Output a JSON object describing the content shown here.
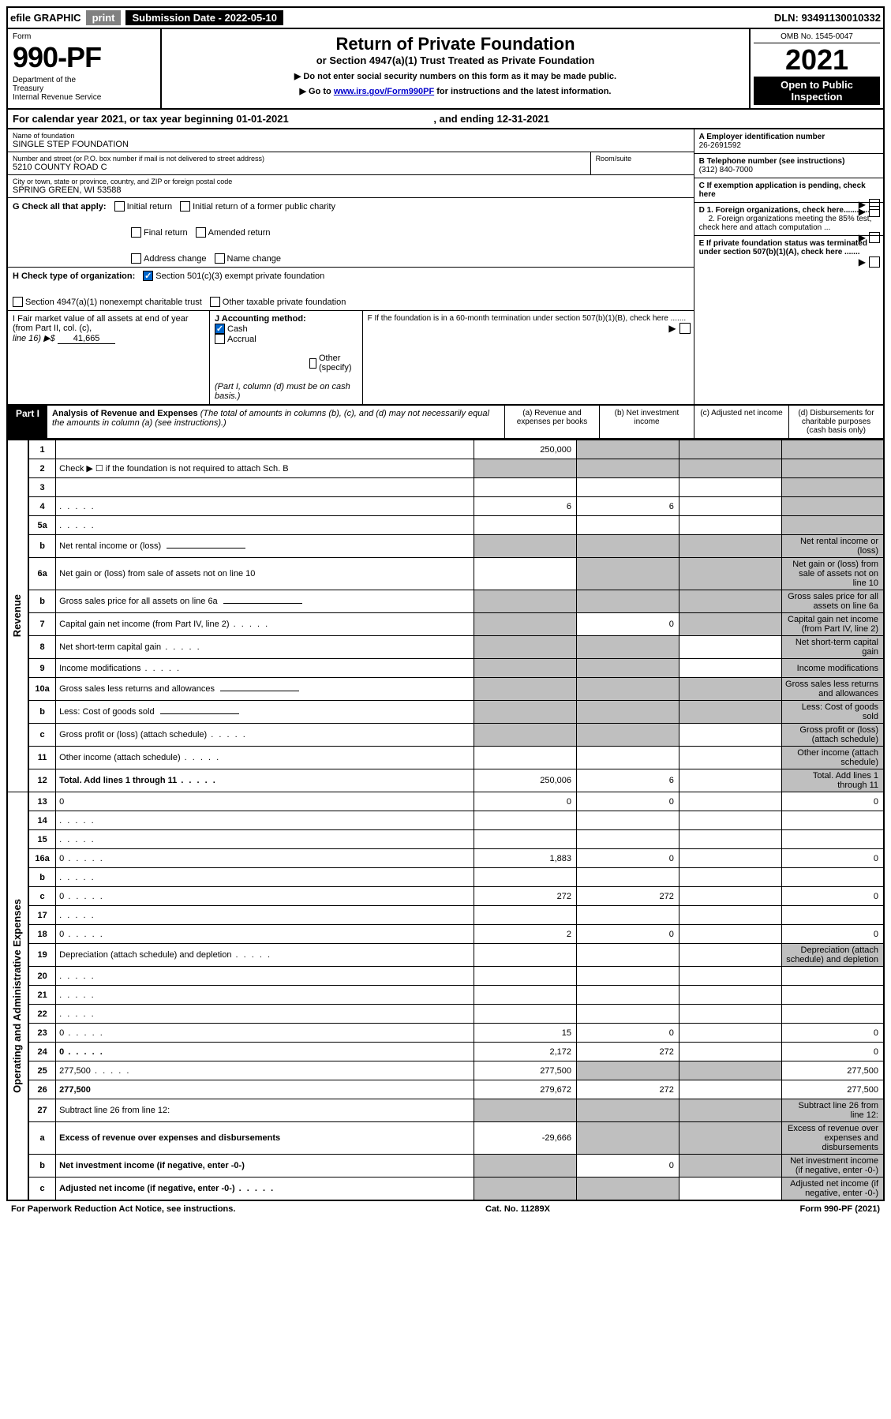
{
  "top": {
    "efile": "efile GRAPHIC",
    "print": "print",
    "sub_date_lbl": "Submission Date - 2022-05-10",
    "dln": "DLN: 93491130010332"
  },
  "header": {
    "form_lbl": "Form",
    "form_num": "990-PF",
    "dept": "Department of the Treasury\nInternal Revenue Service",
    "title": "Return of Private Foundation",
    "subtitle1": "or Section 4947(a)(1) Trust Treated as Private Foundation",
    "subtitle2": "▶ Do not enter social security numbers on this form as it may be made public.",
    "subtitle3": "▶ Go to www.irs.gov/Form990PF for instructions and the latest information.",
    "link": "www.irs.gov/Form990PF",
    "omb": "OMB No. 1545-0047",
    "year": "2021",
    "open": "Open to Public Inspection"
  },
  "cal_year": "For calendar year 2021, or tax year beginning 01-01-2021",
  "cal_year_end": ", and ending 12-31-2021",
  "foundation": {
    "name_lbl": "Name of foundation",
    "name": "SINGLE STEP FOUNDATION",
    "addr_lbl": "Number and street (or P.O. box number if mail is not delivered to street address)",
    "addr": "5210 COUNTY ROAD C",
    "room_lbl": "Room/suite",
    "city_lbl": "City or town, state or province, country, and ZIP or foreign postal code",
    "city": "SPRING GREEN, WI  53588",
    "a_lbl": "A Employer identification number",
    "ein": "26-2691592",
    "b_lbl": "B Telephone number (see instructions)",
    "phone": "(312) 840-7000",
    "c_lbl": "C If exemption application is pending, check here",
    "d1_lbl": "D 1. Foreign organizations, check here............",
    "d2_lbl": "2. Foreign organizations meeting the 85% test, check here and attach computation ...",
    "e_lbl": "E  If private foundation status was terminated under section 507(b)(1)(A), check here .......",
    "f_lbl": "F  If the foundation is in a 60-month termination under section 507(b)(1)(B), check here .......",
    "g_lbl": "G Check all that apply:",
    "g_opts": [
      "Initial return",
      "Initial return of a former public charity",
      "Final return",
      "Amended return",
      "Address change",
      "Name change"
    ],
    "h_lbl": "H Check type of organization:",
    "h_opts": [
      "Section 501(c)(3) exempt private foundation",
      "Section 4947(a)(1) nonexempt charitable trust",
      "Other taxable private foundation"
    ],
    "i_lbl": "I Fair market value of all assets at end of year (from Part II, col. (c),",
    "i_line": "line 16) ▶$",
    "i_val": "41,665",
    "j_lbl": "J Accounting method:",
    "j_opts": [
      "Cash",
      "Accrual",
      "Other (specify)"
    ],
    "j_note": "(Part I, column (d) must be on cash basis.)"
  },
  "part1": {
    "label": "Part I",
    "title": "Analysis of Revenue and Expenses",
    "title_note": "(The total of amounts in columns (b), (c), and (d) may not necessarily equal the amounts in column (a) (see instructions).)",
    "col_a": "(a)   Revenue and expenses per books",
    "col_b": "(b)   Net investment income",
    "col_c": "(c)   Adjusted net income",
    "col_d": "(d)  Disbursements for charitable purposes (cash basis only)"
  },
  "sections": {
    "revenue": "Revenue",
    "expenses": "Operating and Administrative Expenses"
  },
  "rows": [
    {
      "n": "1",
      "d": "",
      "a": "250,000",
      "b": "",
      "c": "",
      "gb": true,
      "gc": true,
      "gd": true
    },
    {
      "n": "2",
      "d": "Check ▶ ☐ if the foundation is not required to attach Sch. B",
      "nocols": true
    },
    {
      "n": "3",
      "d": "",
      "a": "",
      "b": "",
      "c": "",
      "gd": true
    },
    {
      "n": "4",
      "d": "",
      "a": "6",
      "b": "6",
      "c": "",
      "gd": true,
      "dots": true
    },
    {
      "n": "5a",
      "d": "",
      "a": "",
      "b": "",
      "c": "",
      "gd": true,
      "dots": true
    },
    {
      "n": "b",
      "d": "Net rental income or (loss)",
      "inset": true,
      "ga": true,
      "gb": true,
      "gc": true,
      "gd": true
    },
    {
      "n": "6a",
      "d": "Net gain or (loss) from sale of assets not on line 10",
      "a": "",
      "gb": true,
      "gc": true,
      "gd": true
    },
    {
      "n": "b",
      "d": "Gross sales price for all assets on line 6a",
      "inset": true,
      "ga": true,
      "gb": true,
      "gc": true,
      "gd": true
    },
    {
      "n": "7",
      "d": "Capital gain net income (from Part IV, line 2)",
      "b": "0",
      "ga": true,
      "gc": true,
      "gd": true,
      "dots": true
    },
    {
      "n": "8",
      "d": "Net short-term capital gain",
      "ga": true,
      "gb": true,
      "c": "",
      "gd": true,
      "dots": true
    },
    {
      "n": "9",
      "d": "Income modifications",
      "ga": true,
      "gb": true,
      "c": "",
      "gd": true,
      "dots": true
    },
    {
      "n": "10a",
      "d": "Gross sales less returns and allowances",
      "inset": true,
      "ga": true,
      "gb": true,
      "gc": true,
      "gd": true
    },
    {
      "n": "b",
      "d": "Less: Cost of goods sold",
      "inset": true,
      "ga": true,
      "gb": true,
      "gc": true,
      "gd": true,
      "dots": true
    },
    {
      "n": "c",
      "d": "Gross profit or (loss) (attach schedule)",
      "ga": true,
      "gb": true,
      "c": "",
      "gd": true,
      "dots": true
    },
    {
      "n": "11",
      "d": "Other income (attach schedule)",
      "a": "",
      "b": "",
      "c": "",
      "gd": true,
      "dots": true
    },
    {
      "n": "12",
      "d": "Total. Add lines 1 through 11",
      "a": "250,006",
      "b": "6",
      "c": "",
      "gd": true,
      "bold": true,
      "dots": true
    },
    {
      "n": "13",
      "d": "0",
      "a": "0",
      "b": "0",
      "c": ""
    },
    {
      "n": "14",
      "d": "",
      "a": "",
      "b": "",
      "c": "",
      "dots": true
    },
    {
      "n": "15",
      "d": "",
      "a": "",
      "b": "",
      "c": "",
      "dots": true
    },
    {
      "n": "16a",
      "d": "0",
      "a": "1,883",
      "b": "0",
      "c": "",
      "dots": true
    },
    {
      "n": "b",
      "d": "",
      "a": "",
      "b": "",
      "c": "",
      "dots": true
    },
    {
      "n": "c",
      "d": "0",
      "a": "272",
      "b": "272",
      "c": "",
      "dots": true
    },
    {
      "n": "17",
      "d": "",
      "a": "",
      "b": "",
      "c": "",
      "dots": true
    },
    {
      "n": "18",
      "d": "0",
      "a": "2",
      "b": "0",
      "c": "",
      "dots": true
    },
    {
      "n": "19",
      "d": "Depreciation (attach schedule) and depletion",
      "a": "",
      "b": "",
      "c": "",
      "gd": true,
      "dots": true
    },
    {
      "n": "20",
      "d": "",
      "a": "",
      "b": "",
      "c": "",
      "dots": true
    },
    {
      "n": "21",
      "d": "",
      "a": "",
      "b": "",
      "c": "",
      "dots": true
    },
    {
      "n": "22",
      "d": "",
      "a": "",
      "b": "",
      "c": "",
      "dots": true
    },
    {
      "n": "23",
      "d": "0",
      "a": "15",
      "b": "0",
      "c": "",
      "dots": true
    },
    {
      "n": "24",
      "d": "0",
      "a": "2,172",
      "b": "272",
      "c": "",
      "bold": true,
      "dots": true,
      "tall": true
    },
    {
      "n": "25",
      "d": "277,500",
      "a": "277,500",
      "gb": true,
      "gc": true,
      "dots": true
    },
    {
      "n": "26",
      "d": "277,500",
      "a": "279,672",
      "b": "272",
      "c": "",
      "bold": true,
      "tall": true
    },
    {
      "n": "27",
      "d": "Subtract line 26 from line 12:",
      "ga": true,
      "gb": true,
      "gc": true,
      "gd": true
    },
    {
      "n": "a",
      "d": "Excess of revenue over expenses and disbursements",
      "a": "-29,666",
      "gb": true,
      "gc": true,
      "gd": true,
      "bold": true
    },
    {
      "n": "b",
      "d": "Net investment income (if negative, enter -0-)",
      "ga": true,
      "b": "0",
      "gc": true,
      "gd": true,
      "bold": true
    },
    {
      "n": "c",
      "d": "Adjusted net income (if negative, enter -0-)",
      "ga": true,
      "gb": true,
      "c": "",
      "gd": true,
      "bold": true,
      "dots": true
    }
  ],
  "footer": {
    "left": "For Paperwork Reduction Act Notice, see instructions.",
    "mid": "Cat. No. 11289X",
    "right": "Form 990-PF (2021)"
  }
}
